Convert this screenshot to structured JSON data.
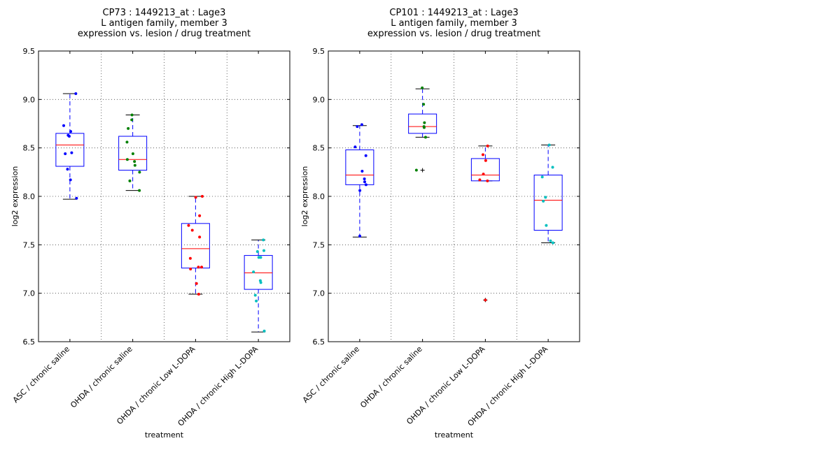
{
  "chart_data": [
    {
      "type": "box",
      "title_lines": [
        "CP73 : 1449213_at : Lage3",
        "L antigen family, member 3",
        "expression vs. lesion / drug treatment"
      ],
      "xlabel": "treatment",
      "ylabel": "log2 expression",
      "ylim": [
        6.5,
        9.5
      ],
      "yticks": [
        "6.5",
        "7.0",
        "7.5",
        "8.0",
        "8.5",
        "9.0",
        "9.5"
      ],
      "grid": true,
      "categories": [
        "ASC / chronic saline",
        "OHDA / chronic saline",
        "OHDA / chronic Low L-DOPA",
        "OHDA / chronic High L-DOPA"
      ],
      "colors": [
        "#0000ff",
        "#008000",
        "#ff0000",
        "#00bfbf"
      ],
      "boxes": [
        {
          "q1": 8.31,
          "median": 8.53,
          "q3": 8.65,
          "whisker_low": 7.97,
          "whisker_high": 9.06,
          "outliers": [],
          "points": [
            9.06,
            8.73,
            8.67,
            8.63,
            8.62,
            8.45,
            8.44,
            8.28,
            8.17,
            7.98
          ]
        },
        {
          "q1": 8.27,
          "median": 8.38,
          "q3": 8.62,
          "whisker_low": 8.06,
          "whisker_high": 8.84,
          "outliers": [],
          "points": [
            8.84,
            8.79,
            8.7,
            8.56,
            8.44,
            8.38,
            8.36,
            8.32,
            8.25,
            8.16,
            8.06
          ]
        },
        {
          "q1": 7.26,
          "median": 7.46,
          "q3": 7.72,
          "whisker_low": 6.99,
          "whisker_high": 8.0,
          "outliers": [],
          "points": [
            8.0,
            7.99,
            7.8,
            7.7,
            7.65,
            7.58,
            7.36,
            7.27,
            7.27,
            7.25,
            7.1,
            6.99
          ]
        },
        {
          "q1": 7.04,
          "median": 7.21,
          "q3": 7.39,
          "whisker_low": 6.6,
          "whisker_high": 7.55,
          "outliers": [],
          "points": [
            7.55,
            7.44,
            7.43,
            7.37,
            7.37,
            7.22,
            7.13,
            7.11,
            6.98,
            6.92,
            6.61
          ]
        }
      ]
    },
    {
      "type": "box",
      "title_lines": [
        "CP101 : 1449213_at : Lage3",
        "L antigen family, member 3",
        "expression vs. lesion / drug treatment"
      ],
      "xlabel": "treatment",
      "ylabel": "log2 expression",
      "ylim": [
        6.5,
        9.5
      ],
      "yticks": [
        "6.5",
        "7.0",
        "7.5",
        "8.0",
        "8.5",
        "9.0",
        "9.5"
      ],
      "grid": true,
      "categories": [
        "ASC / chronic saline",
        "OHDA / chronic saline",
        "OHDA / chronic Low L-DOPA",
        "OHDA / chronic High L-DOPA"
      ],
      "colors": [
        "#0000ff",
        "#008000",
        "#ff0000",
        "#00bfbf"
      ],
      "boxes": [
        {
          "q1": 8.12,
          "median": 8.22,
          "q3": 8.48,
          "whisker_low": 7.58,
          "whisker_high": 8.73,
          "outliers": [],
          "points": [
            8.74,
            8.72,
            8.51,
            8.42,
            8.26,
            8.18,
            8.15,
            8.12,
            8.06,
            7.59
          ]
        },
        {
          "q1": 8.65,
          "median": 8.72,
          "q3": 8.85,
          "whisker_low": 8.61,
          "whisker_high": 9.11,
          "outliers": [
            8.27
          ],
          "points": [
            9.12,
            8.95,
            8.76,
            8.72,
            8.71,
            8.61,
            8.27
          ]
        },
        {
          "q1": 8.16,
          "median": 8.22,
          "q3": 8.39,
          "whisker_low": 8.16,
          "whisker_high": 8.52,
          "outliers": [
            6.93
          ],
          "points": [
            8.52,
            8.43,
            8.37,
            8.23,
            8.17,
            8.16,
            6.93
          ]
        },
        {
          "q1": 7.65,
          "median": 7.96,
          "q3": 8.22,
          "whisker_low": 7.52,
          "whisker_high": 8.53,
          "outliers": [],
          "points": [
            8.53,
            8.3,
            8.2,
            7.99,
            7.95,
            7.7,
            7.54,
            7.52
          ]
        }
      ]
    }
  ]
}
